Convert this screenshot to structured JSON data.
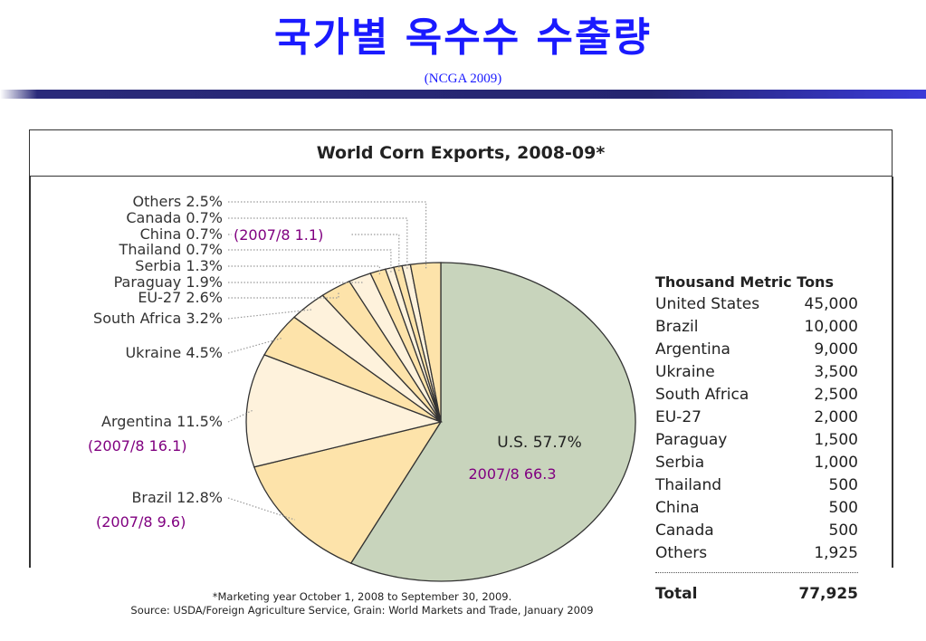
{
  "slide": {
    "title": "국가별 옥수수 수출량",
    "subtitle": "(NCGA 2009)"
  },
  "chart_data": {
    "type": "pie",
    "title": "World Corn Exports, 2008-09*",
    "slices": [
      {
        "label": "U.S. 57.7%",
        "name": "U.S.",
        "value": 57.7,
        "color": "#c8d4bc",
        "note": "2007/8  66.3"
      },
      {
        "label": "Brazil 12.8%",
        "name": "Brazil",
        "value": 12.8,
        "color": "#fde3aa",
        "note": "(2007/8  9.6)"
      },
      {
        "label": "Argentina 11.5%",
        "name": "Argentina",
        "value": 11.5,
        "color": "#fef2dc",
        "note": "(2007/8  16.1)"
      },
      {
        "label": "Ukraine 4.5%",
        "name": "Ukraine",
        "value": 4.5,
        "color": "#fde3aa"
      },
      {
        "label": "South Africa 3.2%",
        "name": "South Africa",
        "value": 3.2,
        "color": "#fef2dc"
      },
      {
        "label": "EU-27 2.6%",
        "name": "EU-27",
        "value": 2.6,
        "color": "#fde3aa"
      },
      {
        "label": "Paraguay 1.9%",
        "name": "Paraguay",
        "value": 1.9,
        "color": "#fef2dc"
      },
      {
        "label": "Serbia 1.3%",
        "name": "Serbia",
        "value": 1.3,
        "color": "#fde3aa"
      },
      {
        "label": "Thailand 0.7%",
        "name": "Thailand",
        "value": 0.7,
        "color": "#fef2dc"
      },
      {
        "label": "China 0.7%",
        "name": "China",
        "value": 0.7,
        "color": "#fde3aa",
        "note": "(2007/8  1.1)"
      },
      {
        "label": "Canada 0.7%",
        "name": "Canada",
        "value": 0.7,
        "color": "#fef2dc"
      },
      {
        "label": "Others 2.5%",
        "name": "Others",
        "value": 2.5,
        "color": "#fde3aa"
      }
    ],
    "table": {
      "header": "Thousand Metric Tons",
      "rows": [
        {
          "country": "United States",
          "value": "45,000"
        },
        {
          "country": "Brazil",
          "value": "10,000"
        },
        {
          "country": "Argentina",
          "value": "9,000"
        },
        {
          "country": "Ukraine",
          "value": "3,500"
        },
        {
          "country": "South Africa",
          "value": "2,500"
        },
        {
          "country": "EU-27",
          "value": "2,000"
        },
        {
          "country": "Paraguay",
          "value": "1,500"
        },
        {
          "country": "Serbia",
          "value": "1,000"
        },
        {
          "country": "Thailand",
          "value": "500"
        },
        {
          "country": "China",
          "value": "500"
        },
        {
          "country": "Canada",
          "value": "500"
        },
        {
          "country": "Others",
          "value": "1,925"
        }
      ],
      "total_label": "Total",
      "total_value": "77,925"
    },
    "footnote": "*Marketing year October 1, 2008 to September 30, 2009.",
    "source": "Source: USDA/Foreign Agriculture Service, Grain: World Markets and Trade, January 2009",
    "colors": {
      "us": "#c8d4bc",
      "gold": "#fde3aa",
      "cream": "#fef2dc",
      "note_text": "#800080",
      "outline": "#333333"
    }
  }
}
